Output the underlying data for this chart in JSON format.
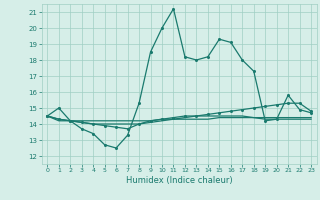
{
  "xlabel": "Humidex (Indice chaleur)",
  "ylabel": "",
  "xlim": [
    -0.5,
    23.5
  ],
  "ylim": [
    11.5,
    21.5
  ],
  "yticks": [
    12,
    13,
    14,
    15,
    16,
    17,
    18,
    19,
    20,
    21
  ],
  "xticks": [
    0,
    1,
    2,
    3,
    4,
    5,
    6,
    7,
    8,
    9,
    10,
    11,
    12,
    13,
    14,
    15,
    16,
    17,
    18,
    19,
    20,
    21,
    22,
    23
  ],
  "bg_color": "#d6eee8",
  "grid_color": "#a0cfc4",
  "line_color": "#1a7a6e",
  "line1": [
    14.5,
    15.0,
    14.2,
    13.7,
    13.4,
    12.7,
    12.5,
    13.3,
    15.3,
    18.5,
    20.0,
    21.2,
    18.2,
    18.0,
    18.2,
    19.3,
    19.1,
    18.0,
    17.3,
    14.2,
    14.3,
    15.8,
    14.9,
    14.7
  ],
  "line2": [
    14.5,
    14.2,
    14.2,
    14.2,
    14.2,
    14.2,
    14.2,
    14.2,
    14.2,
    14.2,
    14.3,
    14.3,
    14.3,
    14.3,
    14.3,
    14.4,
    14.4,
    14.4,
    14.4,
    14.4,
    14.4,
    14.4,
    14.4,
    14.4
  ],
  "line3": [
    14.5,
    14.3,
    14.2,
    14.1,
    14.0,
    13.9,
    13.8,
    13.7,
    14.0,
    14.2,
    14.3,
    14.4,
    14.5,
    14.5,
    14.6,
    14.7,
    14.8,
    14.9,
    15.0,
    15.1,
    15.2,
    15.3,
    15.3,
    14.8
  ],
  "line4": [
    14.5,
    14.3,
    14.2,
    14.1,
    14.0,
    14.0,
    14.0,
    14.0,
    14.0,
    14.1,
    14.2,
    14.3,
    14.4,
    14.5,
    14.5,
    14.5,
    14.5,
    14.5,
    14.4,
    14.3,
    14.3,
    14.3,
    14.3,
    14.3
  ]
}
